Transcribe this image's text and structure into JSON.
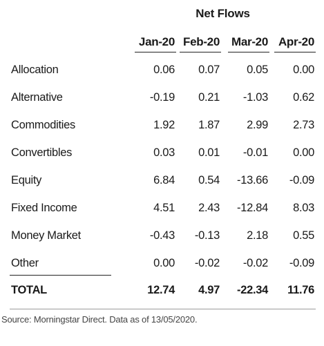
{
  "chart_data": {
    "type": "table",
    "title": "Net Flows",
    "columns": [
      "Jan-20",
      "Feb-20",
      "Mar-20",
      "Apr-20"
    ],
    "rows": [
      {
        "label": "Allocation",
        "values": [
          "0.06",
          "0.07",
          "0.05",
          "0.00"
        ]
      },
      {
        "label": "Alternative",
        "values": [
          "-0.19",
          "0.21",
          "-1.03",
          "0.62"
        ]
      },
      {
        "label": "Commodities",
        "values": [
          "1.92",
          "1.87",
          "2.99",
          "2.73"
        ]
      },
      {
        "label": "Convertibles",
        "values": [
          "0.03",
          "0.01",
          "-0.01",
          "0.00"
        ]
      },
      {
        "label": "Equity",
        "values": [
          "6.84",
          "0.54",
          "-13.66",
          "-0.09"
        ]
      },
      {
        "label": "Fixed Income",
        "values": [
          "4.51",
          "2.43",
          "-12.84",
          "8.03"
        ]
      },
      {
        "label": "Money Market",
        "values": [
          "-0.43",
          "-0.13",
          "2.18",
          "0.55"
        ]
      },
      {
        "label": "Other",
        "values": [
          "0.00",
          "-0.02",
          "-0.02",
          "-0.09"
        ]
      }
    ],
    "total": {
      "label": "TOTAL",
      "values": [
        "12.74",
        "4.97",
        "-22.34",
        "11.76"
      ]
    }
  },
  "source": "Source: Morningstar Direct. Data as of 13/05/2020."
}
